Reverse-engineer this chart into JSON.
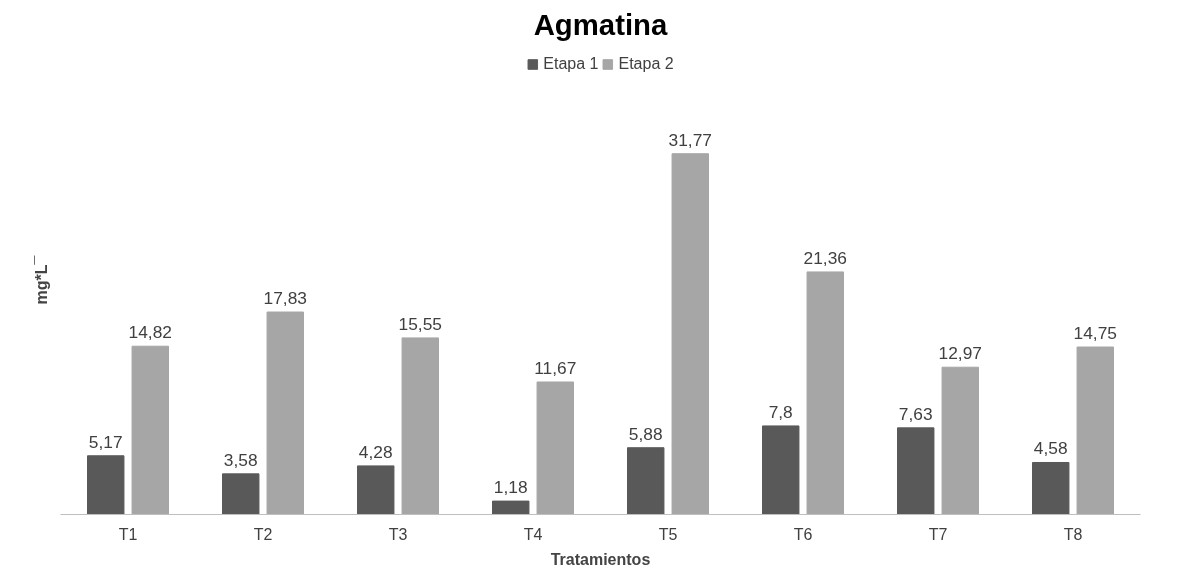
{
  "chart_data": {
    "type": "bar",
    "title": "Agmatina",
    "xlabel": "Tratamientos",
    "ylabel": "mg*L¯",
    "categories": [
      "T1",
      "T2",
      "T3",
      "T4",
      "T5",
      "T6",
      "T7",
      "T8"
    ],
    "series": [
      {
        "name": "Etapa 1",
        "color": "#595959",
        "values": [
          5.17,
          3.58,
          4.28,
          1.18,
          5.88,
          7.8,
          7.63,
          4.58
        ],
        "value_labels": [
          "5,17",
          "3,58",
          "4,28",
          "1,18",
          "5,88",
          "7,8",
          "7,63",
          "4,58"
        ]
      },
      {
        "name": "Etapa 2",
        "color": "#a6a6a6",
        "values": [
          14.82,
          17.83,
          15.55,
          11.67,
          31.77,
          21.36,
          12.97,
          14.75
        ],
        "value_labels": [
          "14,82",
          "17,83",
          "15,55",
          "11,67",
          "31,77",
          "21,36",
          "12,97",
          "14,75"
        ]
      }
    ],
    "legend": "top",
    "grid": false,
    "tick_labels": "x"
  }
}
